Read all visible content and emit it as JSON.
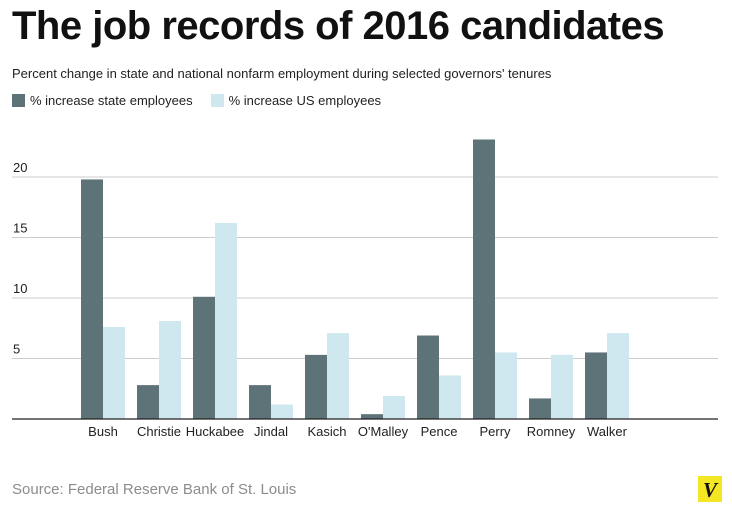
{
  "header": {
    "title": "The job records of 2016 candidates",
    "subtitle": "Percent change in state and national nonfarm employment during selected governors' tenures"
  },
  "footer": {
    "source": "Source: Federal Reserve Bank of St. Louis",
    "logo_text": "V"
  },
  "colors": {
    "state": "#5e7378",
    "us": "#cfe8ef",
    "grid": "#cccccc",
    "axis": "#222222",
    "logo": "#f5e623"
  },
  "chart_data": {
    "type": "bar",
    "title": "The job records of 2016 candidates",
    "subtitle": "Percent change in state and national nonfarm employment during selected governors' tenures",
    "categories": [
      "Bush",
      "Christie",
      "Huckabee",
      "Jindal",
      "Kasich",
      "O'Malley",
      "Pence",
      "Perry",
      "Romney",
      "Walker"
    ],
    "series": [
      {
        "name": "% increase state employees",
        "color": "#5e7378",
        "values": [
          19.8,
          2.8,
          10.1,
          2.8,
          5.3,
          0.4,
          6.9,
          23.1,
          1.7,
          5.5
        ]
      },
      {
        "name": "% increase US employees",
        "color": "#cfe8ef",
        "values": [
          7.6,
          8.1,
          16.2,
          1.2,
          7.1,
          1.9,
          3.6,
          5.5,
          5.3,
          7.1
        ]
      }
    ],
    "yticks": [
      5,
      10,
      15,
      20
    ],
    "ylim": [
      0,
      25
    ],
    "grid": true,
    "legend_position": "top-left"
  }
}
